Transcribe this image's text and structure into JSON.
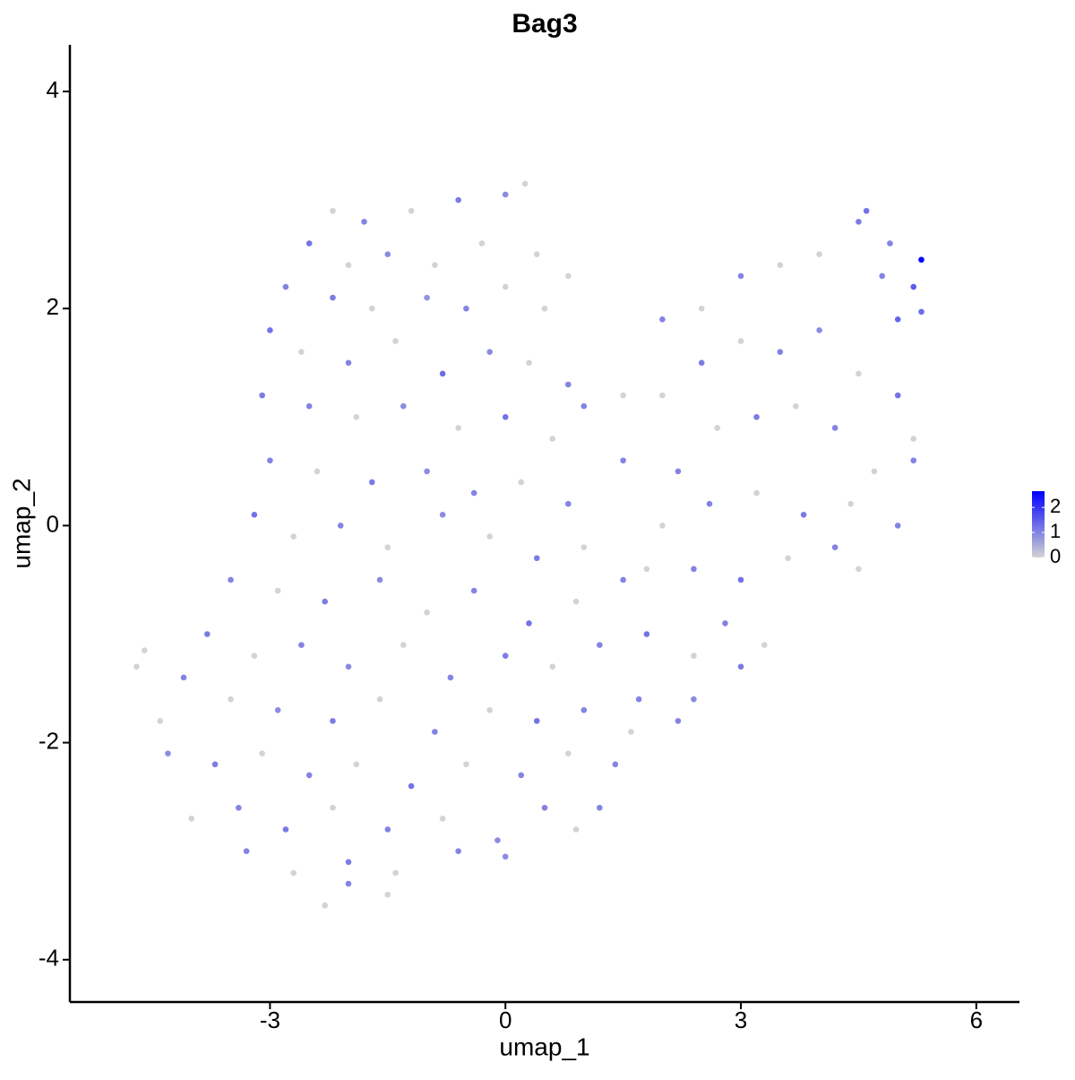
{
  "chart_data": {
    "type": "scatter",
    "title": "Bag3",
    "xlabel": "umap_1",
    "ylabel": "umap_2",
    "xlim": [
      -5.55,
      6.55
    ],
    "ylim": [
      -4.39,
      4.43
    ],
    "xticks": [
      -3,
      0,
      3,
      6
    ],
    "yticks": [
      -4,
      -2,
      0,
      2,
      4
    ],
    "low_color": "#d3d3d3",
    "high_color": "#0000ff",
    "colorlim": [
      0,
      2.65
    ],
    "colorticks": [
      0,
      1,
      2
    ],
    "x": [
      -2.2,
      -1.8,
      -1.2,
      -0.6,
      0,
      0.25,
      -2.5,
      -2,
      -1.5,
      -0.9,
      -0.3,
      0.4,
      0.8,
      -2.8,
      -2.2,
      -1.7,
      -1,
      -0.5,
      0,
      0.5,
      -3,
      -2.6,
      -2,
      -1.4,
      -0.8,
      -0.2,
      0.3,
      0.8,
      -3.1,
      -2.5,
      -1.9,
      -1.3,
      -0.6,
      0,
      0.6,
      1,
      -3,
      -2.4,
      -1.7,
      -1,
      -0.4,
      0.2,
      0.8,
      -3.2,
      -2.7,
      -2.1,
      -1.5,
      -0.8,
      -0.2,
      0.4,
      1,
      -3.5,
      -2.9,
      -2.3,
      -1.6,
      -1,
      -0.4,
      0.3,
      0.9,
      1.5,
      -3.8,
      -3.2,
      -2.6,
      -2,
      -1.3,
      -0.7,
      0,
      0.6,
      1.2,
      1.8,
      2.4,
      -4.1,
      -3.5,
      -2.9,
      -2.2,
      -1.6,
      -0.9,
      -0.2,
      0.4,
      1,
      1.6,
      2.2,
      -4.3,
      -3.7,
      -3.1,
      -2.5,
      -1.9,
      -1.2,
      -0.5,
      0.2,
      0.8,
      1.4,
      -4,
      -3.4,
      -2.8,
      -2.2,
      -1.5,
      -0.8,
      -0.1,
      0.5,
      -3.3,
      -2.7,
      -2,
      -1.4,
      -0.6,
      0,
      -2.3,
      -2,
      -1.5,
      -4.7,
      -4.6,
      -4.4,
      1.5,
      2,
      2.5,
      3,
      3.5,
      4,
      4.5,
      4.6,
      4.9,
      5.3,
      5.2,
      5,
      4.8,
      5.3,
      1.5,
      2,
      2.5,
      3,
      3.5,
      4,
      4.5,
      5,
      2.2,
      2.7,
      3.2,
      3.7,
      4.2,
      4.7,
      5.2,
      2,
      2.6,
      3.2,
      3.8,
      4.4,
      5,
      1.8,
      2.4,
      3,
      3.6,
      4.2,
      4.5,
      2.8,
      3.3,
      3,
      1.7,
      2.4,
      1.2,
      0.9,
      5.2
    ],
    "y": [
      2.9,
      2.8,
      2.9,
      3,
      3.05,
      3.15,
      2.6,
      2.4,
      2.5,
      2.4,
      2.6,
      2.5,
      2.3,
      2.2,
      2.1,
      2,
      2.1,
      2,
      2.2,
      2,
      1.8,
      1.6,
      1.5,
      1.7,
      1.4,
      1.6,
      1.5,
      1.3,
      1.2,
      1.1,
      1,
      1.1,
      0.9,
      1,
      0.8,
      1.1,
      0.6,
      0.5,
      0.4,
      0.5,
      0.3,
      0.4,
      0.2,
      0.1,
      -0.1,
      0,
      -0.2,
      0.1,
      -0.1,
      -0.3,
      -0.2,
      -0.5,
      -0.6,
      -0.7,
      -0.5,
      -0.8,
      -0.6,
      -0.9,
      -0.7,
      -0.5,
      -1,
      -1.2,
      -1.1,
      -1.3,
      -1.1,
      -1.4,
      -1.2,
      -1.3,
      -1.1,
      -1,
      -1.2,
      -1.4,
      -1.6,
      -1.7,
      -1.8,
      -1.6,
      -1.9,
      -1.7,
      -1.8,
      -1.7,
      -1.9,
      -1.8,
      -2.1,
      -2.2,
      -2.1,
      -2.3,
      -2.2,
      -2.4,
      -2.2,
      -2.3,
      -2.1,
      -2.2,
      -2.7,
      -2.6,
      -2.8,
      -2.6,
      -2.8,
      -2.7,
      -2.9,
      -2.6,
      -3,
      -3.2,
      -3.1,
      -3.2,
      -3,
      -3.05,
      -3.5,
      -3.3,
      -3.4,
      -1.3,
      -1.15,
      -1.8,
      1.2,
      1.9,
      2,
      2.3,
      2.4,
      2.5,
      2.8,
      2.9,
      2.6,
      2.45,
      2.2,
      1.9,
      2.3,
      1.97,
      0.6,
      1.2,
      1.5,
      1.7,
      1.6,
      1.8,
      1.4,
      1.2,
      0.5,
      0.9,
      1,
      1.1,
      0.9,
      0.5,
      0.6,
      0,
      0.2,
      0.3,
      0.1,
      0.2,
      0,
      -0.4,
      -0.4,
      -0.5,
      -0.3,
      -0.2,
      -0.4,
      -0.9,
      -1.1,
      -1.3,
      -1.6,
      -1.6,
      -2.6,
      -2.8,
      0.8
    ],
    "values": [
      0,
      1,
      0,
      1.1,
      0.9,
      0,
      1.2,
      0,
      0.9,
      0,
      0,
      0,
      0,
      1,
      1.1,
      0,
      0.8,
      1,
      0,
      0,
      1.2,
      0,
      1,
      0,
      1.3,
      0.9,
      0,
      1,
      1.1,
      1,
      0,
      0.9,
      0,
      1.2,
      0,
      1,
      1,
      0,
      1.1,
      0.9,
      1,
      0,
      1,
      1.2,
      0,
      1,
      0,
      0.9,
      0,
      1.1,
      0,
      1,
      0,
      1.1,
      0.9,
      0,
      1,
      1.2,
      0,
      1,
      1.1,
      0,
      1,
      0.9,
      0,
      1,
      1.1,
      0,
      1,
      1.2,
      0,
      1,
      0,
      0.9,
      1.1,
      0,
      1,
      0,
      1.2,
      1,
      0,
      1,
      0.9,
      1.1,
      0,
      1,
      0,
      1.2,
      0,
      1,
      0,
      1,
      0,
      1,
      1.1,
      0,
      1,
      0,
      0.9,
      1,
      1,
      0,
      1.1,
      0,
      1,
      0.9,
      0,
      1,
      0,
      0,
      0,
      0,
      0,
      1,
      0,
      1,
      0,
      0,
      1.1,
      1.2,
      1,
      2.6,
      1.5,
      1.4,
      1,
      1.3,
      1,
      0,
      1.1,
      0,
      1,
      0.9,
      0,
      1.2,
      1,
      0,
      1.1,
      0,
      1,
      0,
      1,
      0,
      1,
      0,
      1.1,
      0,
      1,
      0,
      1,
      1.2,
      0,
      1,
      0,
      1,
      0,
      1.1,
      1,
      0.9,
      1,
      0,
      0
    ]
  }
}
